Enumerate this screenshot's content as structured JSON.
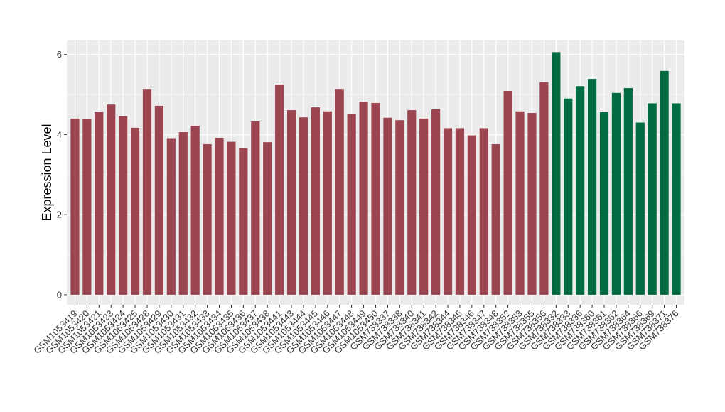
{
  "chart_data": {
    "type": "bar",
    "xlabel": "",
    "ylabel": "Expression Level",
    "ylim": [
      -0.25,
      6.35
    ],
    "yticks": [
      0,
      2,
      4,
      6
    ],
    "grid": true,
    "legend": "none",
    "colors": {
      "group1": "#9b4551",
      "group2": "#006a40",
      "panel": "#ebebeb",
      "grid": "#ffffff"
    },
    "categories": [
      "GSM1053419",
      "GSM1053420",
      "GSM1053421",
      "GSM1053423",
      "GSM1053424",
      "GSM1053425",
      "GSM1053428",
      "GSM1053429",
      "GSM1053430",
      "GSM1053431",
      "GSM1053432",
      "GSM1053433",
      "GSM1053434",
      "GSM1053435",
      "GSM1053436",
      "GSM1053437",
      "GSM1053438",
      "GSM1053441",
      "GSM1053443",
      "GSM1053444",
      "GSM1053445",
      "GSM1053446",
      "GSM1053447",
      "GSM1053448",
      "GSM1053449",
      "GSM1053450",
      "GSM738337",
      "GSM738338",
      "GSM738340",
      "GSM738341",
      "GSM738342",
      "GSM738344",
      "GSM738345",
      "GSM738346",
      "GSM738347",
      "GSM738348",
      "GSM738352",
      "GSM738353",
      "GSM738355",
      "GSM738356",
      "GSM738332",
      "GSM738333",
      "GSM738336",
      "GSM738360",
      "GSM738361",
      "GSM738362",
      "GSM738364",
      "GSM738366",
      "GSM738369",
      "GSM738371",
      "GSM738376"
    ],
    "values": [
      4.4,
      4.38,
      4.57,
      4.75,
      4.46,
      4.17,
      5.14,
      4.72,
      3.91,
      4.06,
      4.22,
      3.76,
      3.92,
      3.82,
      3.66,
      4.33,
      3.81,
      5.25,
      4.61,
      4.43,
      4.68,
      4.58,
      5.14,
      4.52,
      4.82,
      4.79,
      4.42,
      4.36,
      4.61,
      4.4,
      4.63,
      4.16,
      4.16,
      3.98,
      4.16,
      3.76,
      5.09,
      4.58,
      4.54,
      5.31,
      6.06,
      4.9,
      5.21,
      5.39,
      4.56,
      5.04,
      5.16,
      4.3,
      4.78,
      5.59,
      4.78
    ],
    "groups": [
      1,
      1,
      1,
      1,
      1,
      1,
      1,
      1,
      1,
      1,
      1,
      1,
      1,
      1,
      1,
      1,
      1,
      1,
      1,
      1,
      1,
      1,
      1,
      1,
      1,
      1,
      1,
      1,
      1,
      1,
      1,
      1,
      1,
      1,
      1,
      1,
      1,
      1,
      1,
      1,
      2,
      2,
      2,
      2,
      2,
      2,
      2,
      2,
      2,
      2,
      2
    ]
  }
}
